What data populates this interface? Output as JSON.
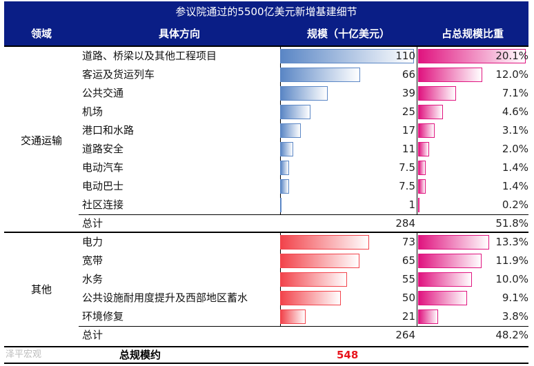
{
  "chart_data": {
    "type": "table",
    "title": "参议院通过的5500亿美元新增基建细节",
    "columns": [
      "领域",
      "具体方向",
      "规模（十亿美元）",
      "占总规模比重"
    ],
    "sections": [
      {
        "name": "交通运输",
        "color_from": "#5a86c5",
        "color_to": "#ffffff",
        "pct_color": "#e0137f",
        "rows": [
          {
            "label": "道路、桥梁以及其他工程项目",
            "value": 110,
            "value_text": "110",
            "pct": 20.1,
            "pct_text": "20.1%"
          },
          {
            "label": "客运及货运列车",
            "value": 66,
            "value_text": "66",
            "pct": 12.0,
            "pct_text": "12.0%"
          },
          {
            "label": "公共交通",
            "value": 39,
            "value_text": "39",
            "pct": 7.1,
            "pct_text": "7.1%"
          },
          {
            "label": "机场",
            "value": 25,
            "value_text": "25",
            "pct": 4.6,
            "pct_text": "4.6%"
          },
          {
            "label": "港口和水路",
            "value": 17,
            "value_text": "17",
            "pct": 3.1,
            "pct_text": "3.1%"
          },
          {
            "label": "道路安全",
            "value": 11,
            "value_text": "11",
            "pct": 2.0,
            "pct_text": "2.0%"
          },
          {
            "label": "电动汽车",
            "value": 7.5,
            "value_text": "7.5",
            "pct": 1.4,
            "pct_text": "1.4%"
          },
          {
            "label": "电动巴士",
            "value": 7.5,
            "value_text": "7.5",
            "pct": 1.4,
            "pct_text": "1.4%"
          },
          {
            "label": "社区连接",
            "value": 1,
            "value_text": "1",
            "pct": 0.2,
            "pct_text": "0.2%"
          }
        ],
        "total_label": "总计",
        "total_value": "284",
        "total_pct": "51.8%"
      },
      {
        "name": "其他",
        "color_from": "#f2434b",
        "color_to": "#ffffff",
        "pct_color": "#e0137f",
        "rows": [
          {
            "label": "电力",
            "value": 73,
            "value_text": "73",
            "pct": 13.3,
            "pct_text": "13.3%"
          },
          {
            "label": "宽带",
            "value": 65,
            "value_text": "65",
            "pct": 11.9,
            "pct_text": "11.9%"
          },
          {
            "label": "水务",
            "value": 55,
            "value_text": "55",
            "pct": 10.0,
            "pct_text": "10.0%"
          },
          {
            "label": "公共设施耐用度提升及西部地区蓄水",
            "value": 50,
            "value_text": "50",
            "pct": 9.1,
            "pct_text": "9.1%"
          },
          {
            "label": "环境修复",
            "value": 21,
            "value_text": "21",
            "pct": 3.8,
            "pct_text": "3.8%"
          }
        ],
        "total_label": "总计",
        "total_value": "264",
        "total_pct": "48.2%"
      }
    ],
    "grand_total_label": "总规模约",
    "grand_total_value": "548",
    "value_max": 110,
    "pct_max": 20.1
  },
  "watermark": "泽平宏观"
}
